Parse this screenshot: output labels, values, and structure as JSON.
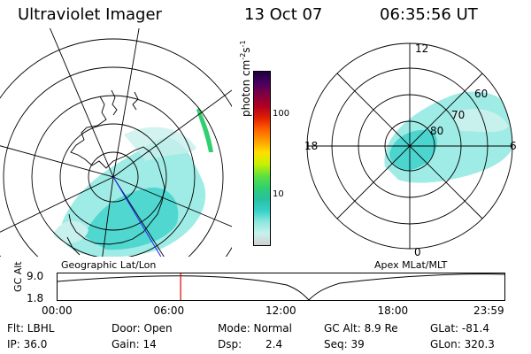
{
  "header": {
    "instrument": "Ultraviolet Imager",
    "date": "13 Oct 07",
    "time": "06:35:56 UT"
  },
  "colorbar": {
    "label": "photon cm",
    "sup1": "-2",
    "mid": "s",
    "sup2": "-1",
    "ticks": [
      {
        "value": "100",
        "level": 100
      },
      {
        "value": "10",
        "level": 10
      }
    ],
    "range": [
      2.5,
      350
    ],
    "scale": "log",
    "colors": [
      "#d0d0d0",
      "#c8f0ec",
      "#8ee8e0",
      "#36d0c8",
      "#28c0a0",
      "#30d070",
      "#60e040",
      "#c8f000",
      "#ffe000",
      "#ffa000",
      "#ff6000",
      "#e02000",
      "#b00020",
      "#800040",
      "#4a0060",
      "#1c0040"
    ]
  },
  "left_panel": {
    "label": "Geographic Lat/Lon"
  },
  "right_panel": {
    "label": "Apex  MLat/MLT",
    "mlt_labels": {
      "top": "12",
      "left": "18",
      "right": "6",
      "bottom": "0"
    },
    "lat_labels": [
      "60",
      "70",
      "80"
    ]
  },
  "timeline": {
    "axis_label": "GC Alt",
    "y_ticks": [
      "9.0",
      "1.8"
    ],
    "y_range": [
      1.8,
      9.0
    ],
    "x_ticks": [
      "00:00",
      "06:00",
      "12:00",
      "18:00",
      "23:59"
    ],
    "current_time_fraction": 0.2749,
    "marker_color": "#e00000"
  },
  "stats": {
    "filter": "Flt: LBHL",
    "ip": "IP: 36.0",
    "door": "Door: Open",
    "gain": "Gain: 14",
    "mode": "Mode: Normal",
    "dsp_label": "Dsp:",
    "dsp_value": "2.4",
    "gc_alt": "GC Alt: 8.9 Re",
    "seq": "Seq: 39",
    "glat": "GLat: -81.4",
    "glon": "GLon: 320.3"
  }
}
